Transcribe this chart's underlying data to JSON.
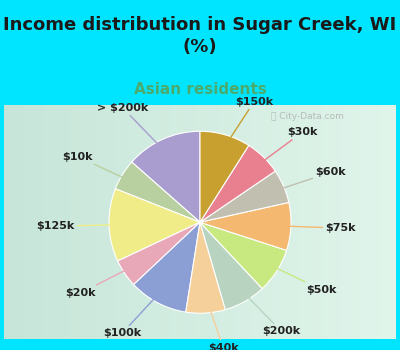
{
  "title": "Income distribution in Sugar Creek, WI\n(%)",
  "subtitle": "Asian residents",
  "title_color": "#1a1a1a",
  "subtitle_color": "#4aab6d",
  "bg_color_cyan": "#00e5ff",
  "watermark": "City-Data.com",
  "labels": [
    "> $200k",
    "$10k",
    "$125k",
    "$20k",
    "$100k",
    "$40k",
    "$200k",
    "$50k",
    "$75k",
    "$60k",
    "$30k",
    "$150k"
  ],
  "values": [
    13.5,
    5.5,
    13.0,
    5.0,
    10.5,
    7.0,
    7.5,
    8.0,
    8.5,
    6.0,
    6.5,
    9.0
  ],
  "colors": [
    "#a99dcf",
    "#b8cfa0",
    "#f0ed88",
    "#e8a8b8",
    "#8c9fd4",
    "#f5d09a",
    "#b8d4c0",
    "#c8e880",
    "#f5b870",
    "#c0bfb0",
    "#e88090",
    "#c8a030"
  ],
  "label_fontsize": 8,
  "title_fontsize": 13,
  "subtitle_fontsize": 11,
  "startangle": 90,
  "chart_bg_left": "#c8e8d8",
  "chart_bg_right": "#e0f5f0"
}
